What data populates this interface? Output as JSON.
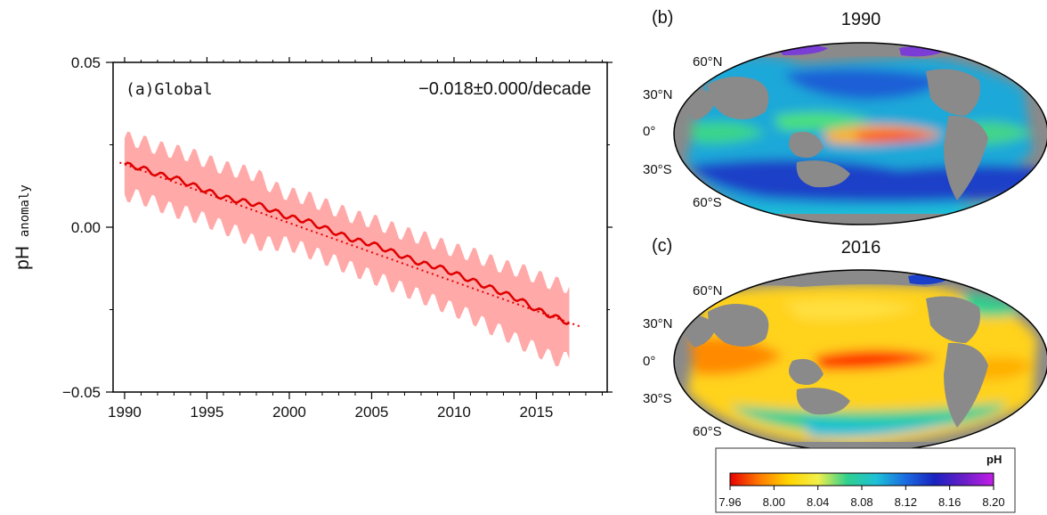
{
  "chart_data": [
    {
      "type": "line",
      "panel": "(a)Global",
      "annotation": "−0.018±0.000/decade",
      "ylabel_main": "pH",
      "ylabel_sub": "anomaly",
      "xlim": [
        1989.3,
        2019.3
      ],
      "ylim": [
        -0.05,
        0.05
      ],
      "x_ticks": [
        1990,
        1995,
        2000,
        2005,
        2010,
        2015
      ],
      "x_tick_labels": [
        "1990",
        "1995",
        "2000",
        "2005",
        "2010",
        "2015"
      ],
      "y_ticks": [
        0.05,
        0.0,
        -0.05
      ],
      "y_tick_labels": [
        "0.05",
        "0.00",
        "−0.05"
      ],
      "trend": {
        "x": [
          1989.7,
          2017.7
        ],
        "y": [
          0.0196,
          -0.0302
        ]
      },
      "series": [
        {
          "role": "mean",
          "x": [
            1990,
            1991,
            1992,
            1993,
            1994,
            1995,
            1996,
            1997,
            1998,
            1999,
            2000,
            2001,
            2002,
            2003,
            2004,
            2005,
            2006,
            2007,
            2008,
            2009,
            2010,
            2011,
            2012,
            2013,
            2014,
            2015,
            2016,
            2017
          ],
          "y": [
            0.019,
            0.018,
            0.016,
            0.015,
            0.013,
            0.011,
            0.009,
            0.008,
            0.007,
            0.005,
            0.003,
            0.002,
            0.0,
            -0.002,
            -0.004,
            -0.005,
            -0.007,
            -0.009,
            -0.011,
            -0.012,
            -0.014,
            -0.016,
            -0.018,
            -0.02,
            -0.022,
            -0.025,
            -0.027,
            -0.029
          ]
        },
        {
          "role": "uncertainty-upper",
          "x": [
            1990,
            1991,
            1992,
            1993,
            1994,
            1995,
            1996,
            1997,
            1998,
            1999,
            2000,
            2001,
            2002,
            2003,
            2004,
            2005,
            2006,
            2007,
            2008,
            2009,
            2010,
            2011,
            2012,
            2013,
            2014,
            2015,
            2016,
            2017
          ],
          "y": [
            0.027,
            0.026,
            0.024,
            0.023,
            0.022,
            0.02,
            0.018,
            0.017,
            0.016,
            0.012,
            0.01,
            0.009,
            0.007,
            0.005,
            0.003,
            0.002,
            0.0,
            -0.002,
            -0.003,
            -0.005,
            -0.007,
            -0.008,
            -0.01,
            -0.012,
            -0.013,
            -0.015,
            -0.017,
            -0.018
          ]
        },
        {
          "role": "uncertainty-lower",
          "x": [
            1990,
            1991,
            1992,
            1993,
            1994,
            1995,
            1996,
            1997,
            1998,
            1999,
            2000,
            2001,
            2002,
            2003,
            2004,
            2005,
            2006,
            2007,
            2008,
            2009,
            2010,
            2011,
            2012,
            2013,
            2014,
            2015,
            2016,
            2017
          ],
          "y": [
            0.01,
            0.009,
            0.007,
            0.005,
            0.004,
            0.002,
            0.0,
            -0.002,
            -0.005,
            -0.005,
            -0.005,
            -0.007,
            -0.009,
            -0.011,
            -0.013,
            -0.015,
            -0.017,
            -0.019,
            -0.021,
            -0.023,
            -0.025,
            -0.027,
            -0.03,
            -0.032,
            -0.035,
            -0.037,
            -0.04,
            -0.04
          ]
        }
      ]
    },
    {
      "type": "heatmap",
      "panel": "(b)",
      "title": "1990",
      "lat_labels": [
        "60°N",
        "30°N",
        "0°",
        "30°S",
        "60°S"
      ],
      "value_range": [
        7.96,
        8.2
      ]
    },
    {
      "type": "heatmap",
      "panel": "(c)",
      "title": "2016",
      "lat_labels": [
        "60°N",
        "30°N",
        "0°",
        "30°S",
        "60°S"
      ],
      "value_range": [
        7.96,
        8.2
      ]
    }
  ],
  "colorbar": {
    "label": "pH",
    "tick_labels": [
      "7.96",
      "8.00",
      "8.04",
      "8.08",
      "8.12",
      "8.16",
      "8.20"
    ],
    "colors": [
      "#e80000",
      "#ff7a00",
      "#ffd400",
      "#f2ef4a",
      "#2fd08e",
      "#1ec0d8",
      "#1b6be0",
      "#1a22c0",
      "#6a1ec8",
      "#c41ee8"
    ]
  }
}
